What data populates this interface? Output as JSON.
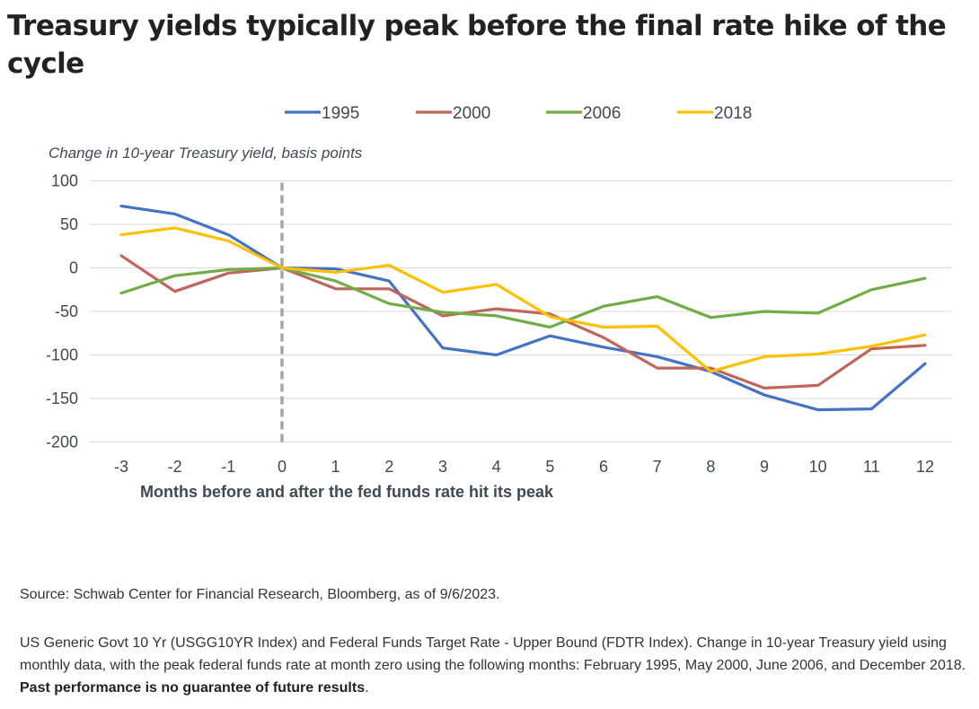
{
  "title": "Treasury yields typically peak before the final rate hike of the cycle",
  "source": "Source: Schwab Center for Financial Research, Bloomberg, as of 9/6/2023.",
  "footnote": {
    "text": "US Generic Govt 10 Yr (USGG10YR Index) and Federal Funds Target Rate - Upper Bound (FDTR Index). Change in 10-year Treasury yield using monthly data, with the peak federal funds rate at month zero using the following months: February 1995, May 2000, June 2006, and December 2018.",
    "bold": "Past performance is no guarantee of future results",
    "end": "."
  },
  "chart_data": {
    "type": "line",
    "ylabel": "Change in 10-year Treasury yield, basis points",
    "xlabel": "Months before and after the fed funds rate hit its peak",
    "x": [
      -3,
      -2,
      -1,
      0,
      1,
      2,
      3,
      4,
      5,
      6,
      7,
      8,
      9,
      10,
      11,
      12
    ],
    "x_tick_labels": [
      "-3",
      "-2",
      "-1",
      "0",
      "1",
      "2",
      "3",
      "4",
      "5",
      "6",
      "7",
      "8",
      "9",
      "10",
      "11",
      "12"
    ],
    "ylim": [
      -200,
      100
    ],
    "y_ticks": [
      100,
      50,
      0,
      -50,
      -100,
      -150,
      -200
    ],
    "y_tick_labels": [
      "100",
      "50",
      "0",
      "-50",
      "-100",
      "-150",
      "-200"
    ],
    "grid": "horizontal",
    "legend_position": "top",
    "reference_line": {
      "x": 0,
      "style": "dashed",
      "color": "#a6a6a6"
    },
    "series": [
      {
        "name": "1995",
        "color": "#4472c4",
        "values": [
          71,
          62,
          38,
          0,
          -1,
          -15,
          -92,
          -100,
          -78,
          -91,
          -102,
          -119,
          -146,
          -163,
          -162,
          -110
        ]
      },
      {
        "name": "2000",
        "color": "#c0655a",
        "values": [
          14,
          -27,
          -6,
          0,
          -24,
          -24,
          -55,
          -47,
          -53,
          -80,
          -115,
          -115,
          -138,
          -135,
          -93,
          -89
        ]
      },
      {
        "name": "2006",
        "color": "#70ad47",
        "values": [
          -29,
          -9,
          -2,
          0,
          -15,
          -41,
          -51,
          -55,
          -68,
          -44,
          -33,
          -57,
          -50,
          -52,
          -25,
          -12
        ]
      },
      {
        "name": "2018",
        "color": "#ffc000",
        "values": [
          38,
          46,
          31,
          0,
          -5,
          3,
          -28,
          -19,
          -56,
          -68,
          -67,
          -119,
          -102,
          -99,
          -90,
          -77
        ]
      }
    ]
  }
}
